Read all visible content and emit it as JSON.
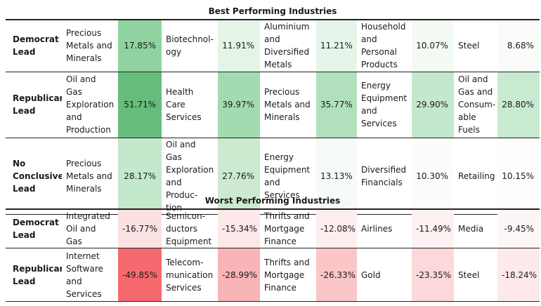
{
  "best": {
    "title": "Best Performing Industries",
    "rows": [
      {
        "label": "Democrat Lead",
        "cells": [
          {
            "industry": "Precious Metals and Minerals",
            "value": "17.85%",
            "color": "#91d3a0"
          },
          {
            "industry": "Biotechnol-ogy",
            "value": "11.91%",
            "color": "#e4f4e7"
          },
          {
            "industry": "Aluminium and Diversified Metals",
            "value": "11.21%",
            "color": "#e6f5e9"
          },
          {
            "industry": "Household and Personal Products",
            "value": "10.07%",
            "color": "#f3faf4"
          },
          {
            "industry": "Steel",
            "value": "8.68%",
            "color": "#fafcfa"
          }
        ]
      },
      {
        "label": "Republican Lead",
        "cells": [
          {
            "industry": "Oil and Gas Exploration and Production",
            "value": "51.71%",
            "color": "#66bd7b"
          },
          {
            "industry": "Health Care Services",
            "value": "39.97%",
            "color": "#a2dbaf"
          },
          {
            "industry": "Precious Metals and Minerals",
            "value": "35.77%",
            "color": "#b1e0bc"
          },
          {
            "industry": "Energy Equipment and Services",
            "value": "29.90%",
            "color": "#c4e8cd"
          },
          {
            "industry": "Oil and Gas and Consum-able Fuels",
            "value": "28.80%",
            "color": "#c8ead0"
          }
        ]
      },
      {
        "label": "No Conclusive Lead",
        "cells": [
          {
            "industry": "Precious Metals and Minerals",
            "value": "28.17%",
            "color": "#c3e8cb"
          },
          {
            "industry": "Oil and Gas Exploration and Produc-tion",
            "value": "27.76%",
            "color": "#cbeacf"
          },
          {
            "industry": "Energy Equipment and Services",
            "value": "13.13%",
            "color": "#f6fbf7"
          },
          {
            "industry": "Diversified Financials",
            "value": "10.30%",
            "color": "#fbfdfb"
          },
          {
            "industry": "Retailing",
            "value": "10.15%",
            "color": "#fcfdfc"
          }
        ]
      }
    ]
  },
  "worst": {
    "title": "Worst Performing Industries",
    "rows": [
      {
        "label": "Democrat Lead",
        "cells": [
          {
            "industry": "Integrated Oil and Gas",
            "value": "-16.77%",
            "color": "#fce1e3"
          },
          {
            "industry": "Semicon-ductors Equipment",
            "value": "-15.34%",
            "color": "#fde8e9"
          },
          {
            "industry": "Thrifts and Mortgage Finance",
            "value": "-12.08%",
            "color": "#fdeff0"
          },
          {
            "industry": "Airlines",
            "value": "-11.49%",
            "color": "#fdf1f2"
          },
          {
            "industry": "Media",
            "value": "-9.45%",
            "color": "#fdf6f7"
          }
        ]
      },
      {
        "label": "Republican Lead",
        "cells": [
          {
            "industry": "Internet Software and Services",
            "value": "-49.85%",
            "color": "#f56a6e"
          },
          {
            "industry": "Telecom-munication Services",
            "value": "-28.99%",
            "color": "#f9b4b7"
          },
          {
            "industry": "Thrifts and Mortgage Finance",
            "value": "-26.33%",
            "color": "#fac6c8"
          },
          {
            "industry": "Gold",
            "value": "-23.35%",
            "color": "#fcd8da"
          },
          {
            "industry": "Steel",
            "value": "-18.24%",
            "color": "#fde9ea"
          }
        ]
      }
    ]
  }
}
